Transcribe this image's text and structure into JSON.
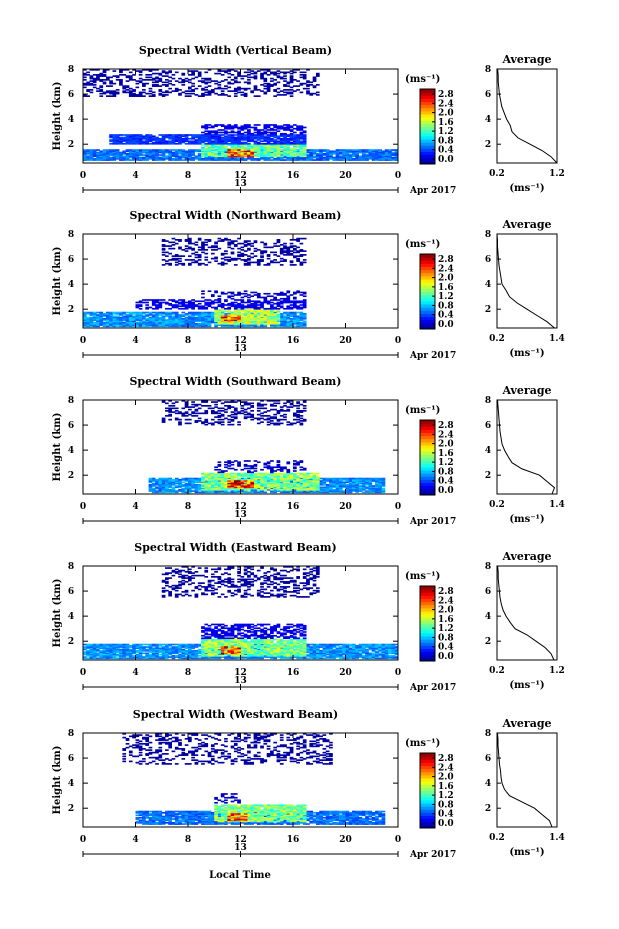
{
  "figure": {
    "xlabel": "Local Time",
    "date_label": "Apr 2017",
    "day_label": "13",
    "ylabel": "Height (km)",
    "colorbar_unit": "(ms⁻¹)",
    "avg_title": "Average",
    "avg_xlabel": "(ms⁻¹)"
  },
  "chart_data": [
    {
      "type": "heatmap",
      "title": "Spectral Width (Vertical Beam)",
      "x_ticks": [
        "0",
        "4",
        "8",
        "12",
        "16",
        "20",
        "0"
      ],
      "y_ticks": [
        "8",
        "6",
        "4",
        "2"
      ],
      "xlim": [
        0,
        24
      ],
      "ylim": [
        0.5,
        8
      ],
      "colorbar_ticks": [
        "2.8",
        "2.4",
        "2.0",
        "1.6",
        "1.2",
        "0.8",
        "0.4",
        "0.0"
      ],
      "clim": [
        0,
        3
      ],
      "avg": {
        "title": "Average",
        "x_ticks": [
          "0.2",
          "1.2"
        ],
        "y_ticks": [
          "8",
          "6",
          "4",
          "2"
        ],
        "xlim": [
          0.2,
          1.2
        ],
        "heights": [
          0.5,
          1.0,
          1.5,
          2.0,
          2.5,
          3.0,
          3.5,
          4.0,
          4.5,
          5.0,
          5.5,
          6.0,
          6.5,
          7.0,
          7.5,
          8.0
        ],
        "values": [
          1.2,
          1.1,
          0.95,
          0.75,
          0.55,
          0.45,
          0.42,
          0.36,
          0.32,
          0.28,
          0.26,
          0.24,
          0.23,
          0.22,
          0.22,
          0.21
        ]
      },
      "segments": [
        {
          "t0": 0,
          "t1": 24,
          "h0": 0.7,
          "h1": 1.6,
          "v": 0.7
        },
        {
          "t0": 9,
          "t1": 17,
          "h0": 1.0,
          "h1": 2.0,
          "v": 1.4
        },
        {
          "t0": 11,
          "t1": 13,
          "h0": 1.0,
          "h1": 1.6,
          "v": 2.3
        },
        {
          "t0": 2,
          "t1": 17,
          "h0": 2.0,
          "h1": 2.8,
          "v": 0.5
        },
        {
          "t0": 9,
          "t1": 17,
          "h0": 2.8,
          "h1": 3.6,
          "v": 0.3
        },
        {
          "t0": 0,
          "t1": 18,
          "h0": 5.8,
          "h1": 7.9,
          "v": 0.1
        }
      ]
    },
    {
      "type": "heatmap",
      "title": "Spectral Width (Northward Beam)",
      "x_ticks": [
        "0",
        "4",
        "8",
        "12",
        "16",
        "20",
        "0"
      ],
      "y_ticks": [
        "8",
        "6",
        "4",
        "2"
      ],
      "xlim": [
        0,
        24
      ],
      "ylim": [
        0.5,
        8
      ],
      "colorbar_ticks": [
        "2.8",
        "2.4",
        "2.0",
        "1.6",
        "1.2",
        "0.8",
        "0.4",
        "0.0"
      ],
      "clim": [
        0,
        3
      ],
      "avg": {
        "title": "Average",
        "x_ticks": [
          "0.2",
          "1.4"
        ],
        "y_ticks": [
          "8",
          "6",
          "4",
          "2"
        ],
        "xlim": [
          0.2,
          1.4
        ],
        "heights": [
          0.5,
          1.0,
          1.5,
          2.0,
          2.5,
          3.0,
          3.5,
          4.0,
          4.5,
          5.0,
          5.5,
          6.0,
          6.5,
          7.0,
          7.5,
          8.0
        ],
        "values": [
          1.35,
          1.2,
          1.0,
          0.8,
          0.6,
          0.45,
          0.38,
          0.3,
          0.28,
          0.26,
          0.24,
          0.23,
          0.22,
          0.21,
          0.21,
          0.2
        ]
      },
      "segments": [
        {
          "t0": 0,
          "t1": 17,
          "h0": 0.6,
          "h1": 1.8,
          "v": 0.8
        },
        {
          "t0": 10,
          "t1": 15,
          "h0": 0.8,
          "h1": 2.0,
          "v": 1.6
        },
        {
          "t0": 10.5,
          "t1": 12,
          "h0": 1.0,
          "h1": 1.5,
          "v": 2.4
        },
        {
          "t0": 4,
          "t1": 17,
          "h0": 2.0,
          "h1": 2.8,
          "v": 0.3
        },
        {
          "t0": 9,
          "t1": 17,
          "h0": 2.8,
          "h1": 3.5,
          "v": 0.2
        },
        {
          "t0": 6,
          "t1": 17,
          "h0": 5.5,
          "h1": 7.6,
          "v": 0.1
        }
      ]
    },
    {
      "type": "heatmap",
      "title": "Spectral Width (Southward Beam)",
      "x_ticks": [
        "0",
        "4",
        "8",
        "12",
        "16",
        "20",
        "0"
      ],
      "y_ticks": [
        "8",
        "6",
        "4",
        "2"
      ],
      "xlim": [
        0,
        24
      ],
      "ylim": [
        0.5,
        8
      ],
      "colorbar_ticks": [
        "2.8",
        "2.4",
        "2.0",
        "1.6",
        "1.2",
        "0.8",
        "0.4",
        "0.0"
      ],
      "clim": [
        0,
        3
      ],
      "avg": {
        "title": "Average",
        "x_ticks": [
          "0.2",
          "1.4"
        ],
        "y_ticks": [
          "8",
          "6",
          "4",
          "2"
        ],
        "xlim": [
          0.2,
          1.4
        ],
        "heights": [
          0.5,
          1.0,
          1.5,
          2.0,
          2.5,
          3.0,
          3.5,
          4.0,
          4.5,
          5.0,
          5.5,
          6.0,
          6.5,
          7.0,
          7.5,
          8.0
        ],
        "values": [
          1.3,
          1.35,
          1.2,
          1.05,
          0.7,
          0.5,
          0.42,
          0.35,
          0.3,
          0.28,
          0.26,
          0.25,
          0.24,
          0.23,
          0.22,
          0.21
        ]
      },
      "segments": [
        {
          "t0": 5,
          "t1": 23,
          "h0": 0.6,
          "h1": 1.8,
          "v": 0.8
        },
        {
          "t0": 9,
          "t1": 18,
          "h0": 0.8,
          "h1": 2.2,
          "v": 1.5
        },
        {
          "t0": 11,
          "t1": 13,
          "h0": 1.0,
          "h1": 1.6,
          "v": 2.5
        },
        {
          "t0": 10,
          "t1": 17,
          "h0": 2.2,
          "h1": 3.2,
          "v": 0.2
        },
        {
          "t0": 6,
          "t1": 17,
          "h0": 6.0,
          "h1": 7.9,
          "v": 0.1
        }
      ]
    },
    {
      "type": "heatmap",
      "title": "Spectral Width (Eastward Beam)",
      "x_ticks": [
        "0",
        "4",
        "8",
        "12",
        "16",
        "20",
        "0"
      ],
      "y_ticks": [
        "8",
        "6",
        "4",
        "2"
      ],
      "xlim": [
        0,
        24
      ],
      "ylim": [
        0.5,
        8
      ],
      "colorbar_ticks": [
        "2.8",
        "2.4",
        "2.0",
        "1.6",
        "1.2",
        "0.8",
        "0.4",
        "0.0"
      ],
      "clim": [
        0,
        3
      ],
      "avg": {
        "title": "Average",
        "x_ticks": [
          "0.2",
          "1.2"
        ],
        "y_ticks": [
          "8",
          "6",
          "4",
          "2"
        ],
        "xlim": [
          0.2,
          1.2
        ],
        "heights": [
          0.5,
          1.0,
          1.5,
          2.0,
          2.5,
          3.0,
          3.5,
          4.0,
          4.5,
          5.0,
          5.5,
          6.0,
          6.5,
          7.0,
          7.5,
          8.0
        ],
        "values": [
          1.15,
          1.1,
          1.0,
          0.85,
          0.7,
          0.5,
          0.42,
          0.35,
          0.3,
          0.27,
          0.25,
          0.24,
          0.23,
          0.22,
          0.22,
          0.21
        ]
      },
      "segments": [
        {
          "t0": 0,
          "t1": 24,
          "h0": 0.6,
          "h1": 1.8,
          "v": 0.8
        },
        {
          "t0": 9,
          "t1": 17,
          "h0": 0.8,
          "h1": 2.2,
          "v": 1.5
        },
        {
          "t0": 10.5,
          "t1": 12,
          "h0": 1.0,
          "h1": 1.6,
          "v": 2.4
        },
        {
          "t0": 9,
          "t1": 17,
          "h0": 2.2,
          "h1": 3.4,
          "v": 0.3
        },
        {
          "t0": 6,
          "t1": 18,
          "h0": 5.5,
          "h1": 7.9,
          "v": 0.1
        }
      ]
    },
    {
      "type": "heatmap",
      "title": "Spectral Width (Westward Beam)",
      "x_ticks": [
        "0",
        "4",
        "8",
        "12",
        "16",
        "20",
        "0"
      ],
      "y_ticks": [
        "8",
        "6",
        "4",
        "2"
      ],
      "xlim": [
        0,
        24
      ],
      "ylim": [
        0.5,
        8
      ],
      "colorbar_ticks": [
        "2.8",
        "2.4",
        "2.0",
        "1.6",
        "1.2",
        "0.8",
        "0.4",
        "0.0"
      ],
      "clim": [
        0,
        3
      ],
      "avg": {
        "title": "Average",
        "x_ticks": [
          "0.2",
          "1.4"
        ],
        "y_ticks": [
          "8",
          "6",
          "4",
          "2"
        ],
        "xlim": [
          0.2,
          1.4
        ],
        "heights": [
          0.5,
          1.0,
          1.5,
          2.0,
          2.5,
          3.0,
          3.5,
          4.0,
          4.5,
          5.0,
          5.5,
          6.0,
          6.5,
          7.0,
          7.5,
          8.0
        ],
        "values": [
          1.3,
          1.25,
          1.1,
          0.95,
          0.7,
          0.45,
          0.35,
          0.3,
          0.28,
          0.27,
          0.25,
          0.24,
          0.23,
          0.22,
          0.22,
          0.21
        ]
      },
      "segments": [
        {
          "t0": 4,
          "t1": 23,
          "h0": 0.7,
          "h1": 1.8,
          "v": 0.7
        },
        {
          "t0": 10,
          "t1": 17,
          "h0": 0.9,
          "h1": 2.3,
          "v": 1.5
        },
        {
          "t0": 11,
          "t1": 12.5,
          "h0": 1.0,
          "h1": 1.6,
          "v": 2.3
        },
        {
          "t0": 10,
          "t1": 12,
          "h0": 2.4,
          "h1": 3.2,
          "v": 0.2
        },
        {
          "t0": 3,
          "t1": 19,
          "h0": 5.5,
          "h1": 7.9,
          "v": 0.1
        }
      ]
    }
  ]
}
